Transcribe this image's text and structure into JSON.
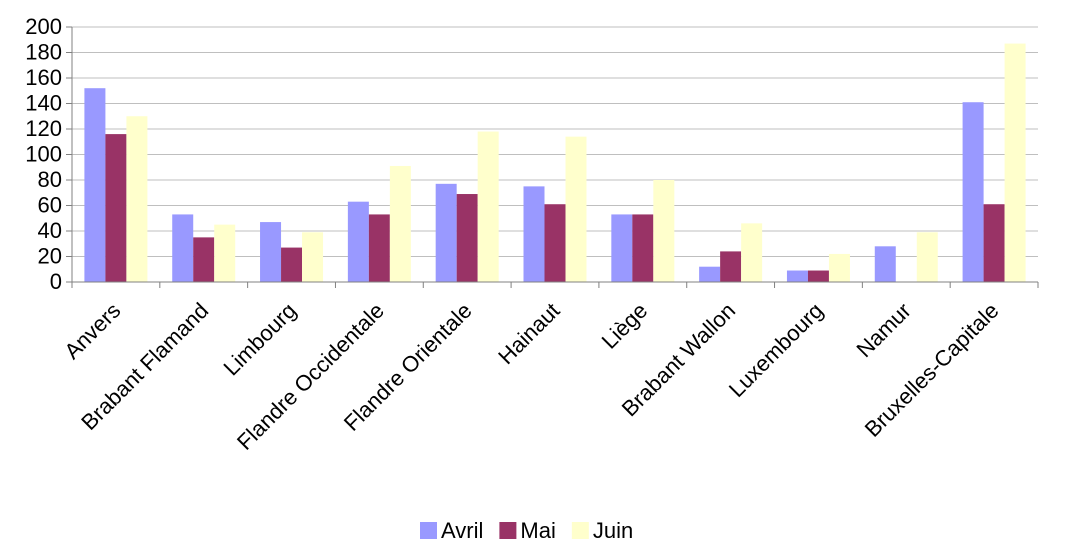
{
  "chart_data": {
    "type": "bar",
    "categories": [
      "Anvers",
      "Brabant Flamand",
      "Limbourg",
      "Flandre Occidentale",
      "Flandre Orientale",
      "Hainaut",
      "Liège",
      "Brabant Wallon",
      "Luxembourg",
      "Namur",
      "Bruxelles-Capitale"
    ],
    "series": [
      {
        "name": "Avril",
        "color": "#9999ff",
        "values": [
          152,
          53,
          47,
          63,
          77,
          75,
          53,
          12,
          9,
          28,
          141
        ]
      },
      {
        "name": "Mai",
        "color": "#993366",
        "values": [
          116,
          35,
          27,
          53,
          69,
          61,
          53,
          24,
          9,
          0,
          61
        ]
      },
      {
        "name": "Juin",
        "color": "#ffffcc",
        "values": [
          130,
          45,
          39,
          91,
          118,
          114,
          80,
          46,
          22,
          39,
          187
        ]
      }
    ],
    "ylim": [
      0,
      200
    ],
    "yticks": [
      0,
      20,
      40,
      60,
      80,
      100,
      120,
      140,
      160,
      180,
      200
    ],
    "grid": true,
    "legend_position": "bottom"
  }
}
